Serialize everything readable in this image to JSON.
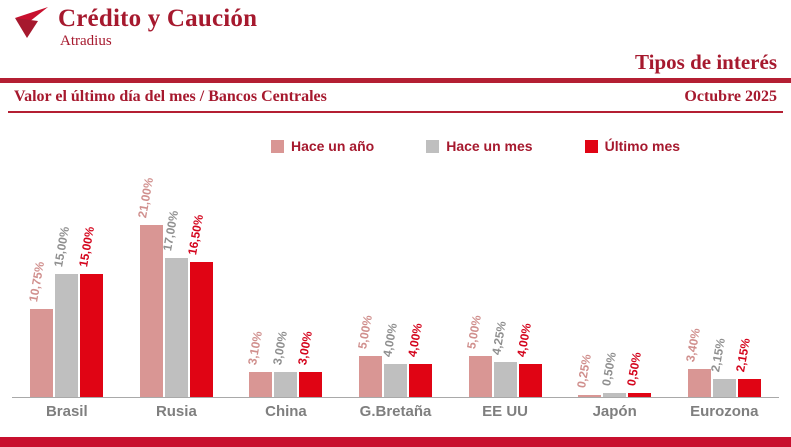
{
  "brand": {
    "name": "Crédito y Caución",
    "subtitle": "Atradius",
    "logo_icon": "bird-logo-icon"
  },
  "header": {
    "title": "Tipos de interés",
    "subtitle_left": "Valor el último día del mes / Bancos Centrales",
    "subtitle_right": "Octubre 2025"
  },
  "colors": {
    "brand_red": "#a6192e",
    "rule_red": "#b41f33",
    "bottom_bar_red": "#c8102e",
    "category_gray": "#7f7f7f",
    "axis_gray": "#a9a9a9"
  },
  "chart_data": {
    "type": "bar",
    "title": "Tipos de interés",
    "subtitle": "Valor el último día del mes / Bancos Centrales",
    "period": "Octubre 2025",
    "categories": [
      "Brasil",
      "Rusia",
      "China",
      "G.Bretaña",
      "EE UU",
      "Japón",
      "Eurozona"
    ],
    "series": [
      {
        "name": "Hace un año",
        "color": "#d99694",
        "label_color": "#d08f8d",
        "values": [
          10.75,
          21.0,
          3.1,
          5.0,
          5.0,
          0.25,
          3.4
        ],
        "labels": [
          "10,75%",
          "21,00%",
          "3,10%",
          "5,00%",
          "5,00%",
          "0,25%",
          "3,40%"
        ]
      },
      {
        "name": "Hace un mes",
        "color": "#bfbfbf",
        "label_color": "#8f8f8f",
        "values": [
          15.0,
          17.0,
          3.0,
          4.0,
          4.25,
          0.5,
          2.15
        ],
        "labels": [
          "15,00%",
          "17,00%",
          "3,00%",
          "4,00%",
          "4,25%",
          "0,50%",
          "2,15%"
        ]
      },
      {
        "name": "Último mes",
        "color": "#e00414",
        "label_color": "#d4041c",
        "values": [
          15.0,
          16.5,
          3.0,
          4.0,
          4.0,
          0.5,
          2.15
        ],
        "labels": [
          "15,00%",
          "16,50%",
          "3,00%",
          "4,00%",
          "4,00%",
          "0,50%",
          "2,15%"
        ]
      }
    ],
    "ylim": [
      0,
      21
    ],
    "grid": false,
    "legend_position": "top",
    "value_label_rotation_deg": -80
  }
}
